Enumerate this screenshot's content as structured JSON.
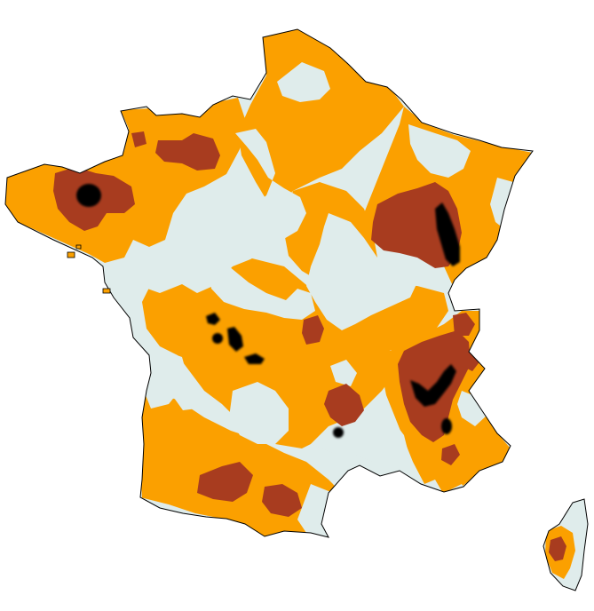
{
  "map": {
    "colors": {
      "background": "#ffffff",
      "low": "#dfeceb",
      "medium": "#fba000",
      "high": "#a83c1f",
      "very_high": "#000000",
      "outline": "#000000"
    },
    "levels": [
      "low",
      "medium",
      "high",
      "very_high"
    ],
    "regions": [
      "mainland-france",
      "corsica"
    ]
  }
}
